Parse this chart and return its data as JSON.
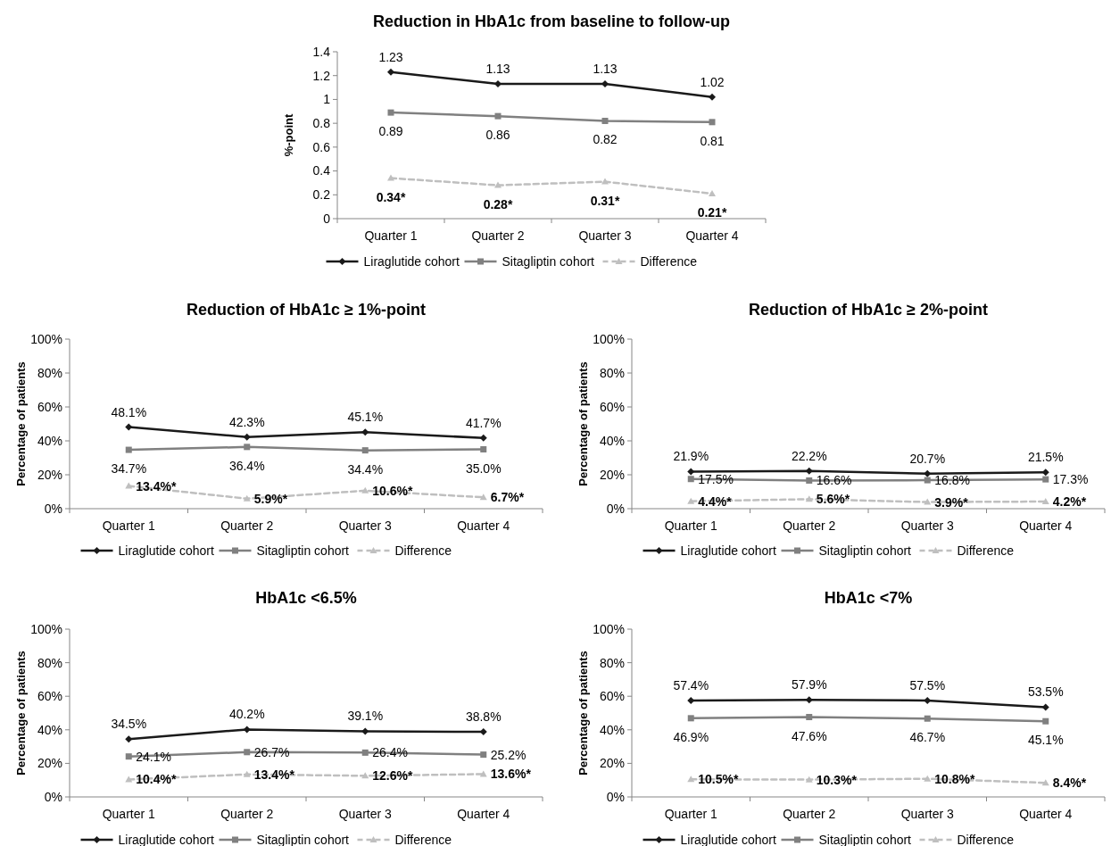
{
  "chart_data": [
    {
      "type": "line",
      "title": "Reduction in HbA1c from baseline to follow-up",
      "ylabel": "%-point",
      "categories": [
        "Quarter 1",
        "Quarter 2",
        "Quarter 3",
        "Quarter 4"
      ],
      "ylim": [
        0,
        1.4
      ],
      "yticks": [
        0,
        0.2,
        0.4,
        0.6,
        0.8,
        1,
        1.2,
        1.4
      ],
      "grid": false,
      "legend": "bottom",
      "series": [
        {
          "name": "Liraglutide cohort",
          "color": "#1a1a1a",
          "marker": "diamond",
          "line_style": "solid",
          "values": [
            1.23,
            1.13,
            1.13,
            1.02
          ],
          "value_labels": [
            "1.23",
            "1.13",
            "1.13",
            "1.02"
          ]
        },
        {
          "name": "Sitagliptin cohort",
          "color": "#808080",
          "marker": "square",
          "line_style": "solid",
          "values": [
            0.89,
            0.86,
            0.82,
            0.81
          ],
          "value_labels": [
            "0.89",
            "0.86",
            "0.82",
            "0.81"
          ]
        },
        {
          "name": "Difference",
          "color": "#bfbfbf",
          "marker": "triangle",
          "line_style": "dashed",
          "values": [
            0.34,
            0.28,
            0.31,
            0.21
          ],
          "value_labels": [
            "0.34*",
            "0.28*",
            "0.31*",
            "0.21*"
          ]
        }
      ]
    },
    {
      "type": "line",
      "title": "Reduction of HbA1c ≥ 1%-point",
      "ylabel": "Percentage of patients",
      "categories": [
        "Quarter 1",
        "Quarter 2",
        "Quarter 3",
        "Quarter 4"
      ],
      "ylim": [
        0,
        100
      ],
      "yticks": [
        {
          "value": 0,
          "label": "0%"
        },
        {
          "value": 20,
          "label": "20%"
        },
        {
          "value": 40,
          "label": "40%"
        },
        {
          "value": 60,
          "label": "60%"
        },
        {
          "value": 80,
          "label": "80%"
        },
        {
          "value": 100,
          "label": "100%"
        }
      ],
      "grid": false,
      "legend": "bottom",
      "series": [
        {
          "name": "Liraglutide cohort",
          "color": "#1a1a1a",
          "marker": "diamond",
          "line_style": "solid",
          "values": [
            48.1,
            42.3,
            45.1,
            41.7
          ],
          "value_labels": [
            "48.1%",
            "42.3%",
            "45.1%",
            "41.7%"
          ]
        },
        {
          "name": "Sitagliptin cohort",
          "color": "#808080",
          "marker": "square",
          "line_style": "solid",
          "values": [
            34.7,
            36.4,
            34.4,
            35.0
          ],
          "value_labels": [
            "34.7%",
            "36.4%",
            "34.4%",
            "35.0%"
          ]
        },
        {
          "name": "Difference",
          "color": "#bfbfbf",
          "marker": "triangle",
          "line_style": "dashed",
          "values": [
            13.4,
            5.9,
            10.6,
            6.7
          ],
          "value_labels": [
            "13.4%*",
            "5.9%*",
            "10.6%*",
            "6.7%*"
          ]
        }
      ]
    },
    {
      "type": "line",
      "title": "Reduction of HbA1c ≥ 2%-point",
      "ylabel": "Percentage of patients",
      "categories": [
        "Quarter 1",
        "Quarter 2",
        "Quarter 3",
        "Quarter 4"
      ],
      "ylim": [
        0,
        100
      ],
      "yticks": [
        {
          "value": 0,
          "label": "0%"
        },
        {
          "value": 20,
          "label": "20%"
        },
        {
          "value": 40,
          "label": "40%"
        },
        {
          "value": 60,
          "label": "60%"
        },
        {
          "value": 80,
          "label": "80%"
        },
        {
          "value": 100,
          "label": "100%"
        }
      ],
      "grid": false,
      "legend": "bottom",
      "series": [
        {
          "name": "Liraglutide cohort",
          "color": "#1a1a1a",
          "marker": "diamond",
          "line_style": "solid",
          "values": [
            21.9,
            22.2,
            20.7,
            21.5
          ],
          "value_labels": [
            "21.9%",
            "22.2%",
            "20.7%",
            "21.5%"
          ]
        },
        {
          "name": "Sitagliptin cohort",
          "color": "#808080",
          "marker": "square",
          "line_style": "solid",
          "values": [
            17.5,
            16.6,
            16.8,
            17.3
          ],
          "value_labels": [
            "17.5%",
            "16.6%",
            "16.8%",
            "17.3%"
          ]
        },
        {
          "name": "Difference",
          "color": "#bfbfbf",
          "marker": "triangle",
          "line_style": "dashed",
          "values": [
            4.4,
            5.6,
            3.9,
            4.2
          ],
          "value_labels": [
            "4.4%*",
            "5.6%*",
            "3.9%*",
            "4.2%*"
          ]
        }
      ]
    },
    {
      "type": "line",
      "title": "HbA1c <6.5%",
      "ylabel": "Percentage of patients",
      "categories": [
        "Quarter 1",
        "Quarter 2",
        "Quarter 3",
        "Quarter 4"
      ],
      "ylim": [
        0,
        100
      ],
      "yticks": [
        {
          "value": 0,
          "label": "0%"
        },
        {
          "value": 20,
          "label": "20%"
        },
        {
          "value": 40,
          "label": "40%"
        },
        {
          "value": 60,
          "label": "60%"
        },
        {
          "value": 80,
          "label": "80%"
        },
        {
          "value": 100,
          "label": "100%"
        }
      ],
      "grid": false,
      "legend": "bottom",
      "series": [
        {
          "name": "Liraglutide cohort",
          "color": "#1a1a1a",
          "marker": "diamond",
          "line_style": "solid",
          "values": [
            34.5,
            40.2,
            39.1,
            38.8
          ],
          "value_labels": [
            "34.5%",
            "40.2%",
            "39.1%",
            "38.8%"
          ]
        },
        {
          "name": "Sitagliptin cohort",
          "color": "#808080",
          "marker": "square",
          "line_style": "solid",
          "values": [
            24.1,
            26.7,
            26.4,
            25.2
          ],
          "value_labels": [
            "24.1%",
            "26.7%",
            "26.4%",
            "25.2%"
          ]
        },
        {
          "name": "Difference",
          "color": "#bfbfbf",
          "marker": "triangle",
          "line_style": "dashed",
          "values": [
            10.4,
            13.4,
            12.6,
            13.6
          ],
          "value_labels": [
            "10.4%*",
            "13.4%*",
            "12.6%*",
            "13.6%*"
          ]
        }
      ]
    },
    {
      "type": "line",
      "title": "HbA1c <7%",
      "ylabel": "Percentage of patients",
      "categories": [
        "Quarter 1",
        "Quarter 2",
        "Quarter 3",
        "Quarter 4"
      ],
      "ylim": [
        0,
        100
      ],
      "yticks": [
        {
          "value": 0,
          "label": "0%"
        },
        {
          "value": 20,
          "label": "20%"
        },
        {
          "value": 40,
          "label": "40%"
        },
        {
          "value": 60,
          "label": "60%"
        },
        {
          "value": 80,
          "label": "80%"
        },
        {
          "value": 100,
          "label": "100%"
        }
      ],
      "grid": false,
      "legend": "bottom",
      "series": [
        {
          "name": "Liraglutide cohort",
          "color": "#1a1a1a",
          "marker": "diamond",
          "line_style": "solid",
          "values": [
            57.4,
            57.9,
            57.5,
            53.5
          ],
          "value_labels": [
            "57.4%",
            "57.9%",
            "57.5%",
            "53.5%"
          ]
        },
        {
          "name": "Sitagliptin cohort",
          "color": "#808080",
          "marker": "square",
          "line_style": "solid",
          "values": [
            46.9,
            47.6,
            46.7,
            45.1
          ],
          "value_labels": [
            "46.9%",
            "47.6%",
            "46.7%",
            "45.1%"
          ]
        },
        {
          "name": "Difference",
          "color": "#bfbfbf",
          "marker": "triangle",
          "line_style": "dashed",
          "values": [
            10.5,
            10.3,
            10.8,
            8.4
          ],
          "value_labels": [
            "10.5%*",
            "10.3%*",
            "10.8%*",
            "8.4%*"
          ]
        }
      ]
    }
  ]
}
